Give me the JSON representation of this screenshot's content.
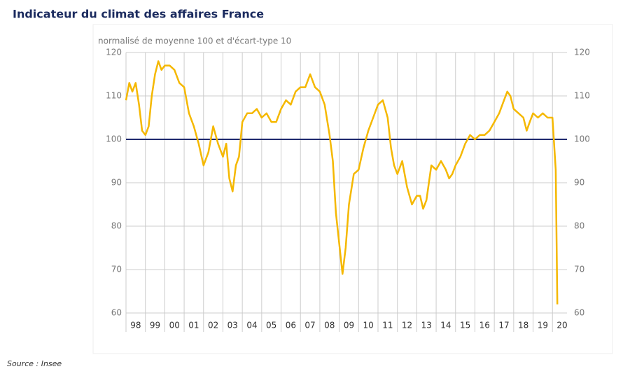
{
  "chart_data": {
    "type": "line",
    "title": "Indicateur du climat des affaires France",
    "subtitle": "normalisé de moyenne 100 et d'écart-type 10",
    "source": "Source : Insee",
    "x": [
      1998.0,
      1998.17,
      1998.33,
      1998.5,
      1998.67,
      1998.83,
      1999.0,
      1999.17,
      1999.33,
      1999.5,
      1999.67,
      1999.83,
      2000.0,
      2000.25,
      2000.5,
      2000.75,
      2001.0,
      2001.25,
      2001.5,
      2001.75,
      2002.0,
      2002.25,
      2002.5,
      2002.75,
      2003.0,
      2003.17,
      2003.33,
      2003.5,
      2003.67,
      2003.83,
      2004.0,
      2004.25,
      2004.5,
      2004.75,
      2005.0,
      2005.25,
      2005.5,
      2005.75,
      2006.0,
      2006.25,
      2006.5,
      2006.75,
      2007.0,
      2007.25,
      2007.5,
      2007.75,
      2008.0,
      2008.25,
      2008.5,
      2008.67,
      2008.83,
      2009.0,
      2009.17,
      2009.33,
      2009.5,
      2009.75,
      2010.0,
      2010.25,
      2010.5,
      2010.75,
      2011.0,
      2011.25,
      2011.5,
      2011.67,
      2011.83,
      2012.0,
      2012.25,
      2012.5,
      2012.75,
      2013.0,
      2013.17,
      2013.33,
      2013.5,
      2013.75,
      2014.0,
      2014.25,
      2014.5,
      2014.67,
      2014.83,
      2015.0,
      2015.25,
      2015.5,
      2015.75,
      2016.0,
      2016.25,
      2016.5,
      2016.75,
      2017.0,
      2017.25,
      2017.5,
      2017.67,
      2017.83,
      2018.0,
      2018.25,
      2018.5,
      2018.67,
      2018.83,
      2019.0,
      2019.25,
      2019.5,
      2019.75,
      2020.0,
      2020.17,
      2020.25
    ],
    "series": [
      {
        "name": "Climat des affaires",
        "color": "#f5b800",
        "values": [
          109,
          113,
          111,
          113,
          108,
          102,
          101,
          103,
          110,
          115,
          118,
          116,
          117,
          117,
          116,
          113,
          112,
          106,
          103,
          99,
          94,
          97,
          103,
          99,
          96,
          99,
          91,
          88,
          94,
          96,
          104,
          106,
          106,
          107,
          105,
          106,
          104,
          104,
          107,
          109,
          108,
          111,
          112,
          112,
          115,
          112,
          111,
          108,
          101,
          95,
          83,
          76,
          69,
          75,
          85,
          92,
          93,
          98,
          102,
          105,
          108,
          109,
          105,
          98,
          94,
          92,
          95,
          89,
          85,
          87,
          87,
          84,
          86,
          94,
          93,
          95,
          93,
          91,
          92,
          94,
          96,
          99,
          101,
          100,
          101,
          101,
          102,
          104,
          106,
          109,
          111,
          110,
          107,
          106,
          105,
          102,
          104,
          106,
          105,
          106,
          105,
          105,
          93,
          62
        ]
      }
    ],
    "reference_line": 100,
    "reference_color": "#1f2a6e",
    "xlim": [
      1998,
      2020.75
    ],
    "xticks": [
      {
        "value": 1998,
        "label": "98"
      },
      {
        "value": 1999,
        "label": "99"
      },
      {
        "value": 2000,
        "label": "00"
      },
      {
        "value": 2001,
        "label": "01"
      },
      {
        "value": 2002,
        "label": "02"
      },
      {
        "value": 2003,
        "label": "03"
      },
      {
        "value": 2004,
        "label": "04"
      },
      {
        "value": 2005,
        "label": "05"
      },
      {
        "value": 2006,
        "label": "06"
      },
      {
        "value": 2007,
        "label": "07"
      },
      {
        "value": 2008,
        "label": "08"
      },
      {
        "value": 2009,
        "label": "09"
      },
      {
        "value": 2010,
        "label": "10"
      },
      {
        "value": 2011,
        "label": "11"
      },
      {
        "value": 2012,
        "label": "12"
      },
      {
        "value": 2013,
        "label": "13"
      },
      {
        "value": 2014,
        "label": "14"
      },
      {
        "value": 2015,
        "label": "15"
      },
      {
        "value": 2016,
        "label": "16"
      },
      {
        "value": 2017,
        "label": "17"
      },
      {
        "value": 2018,
        "label": "18"
      },
      {
        "value": 2019,
        "label": "19"
      },
      {
        "value": 2020,
        "label": "20"
      }
    ],
    "ylim": [
      60,
      120
    ],
    "yticks": [
      60,
      70,
      80,
      90,
      100,
      110,
      120
    ],
    "grid": true
  }
}
